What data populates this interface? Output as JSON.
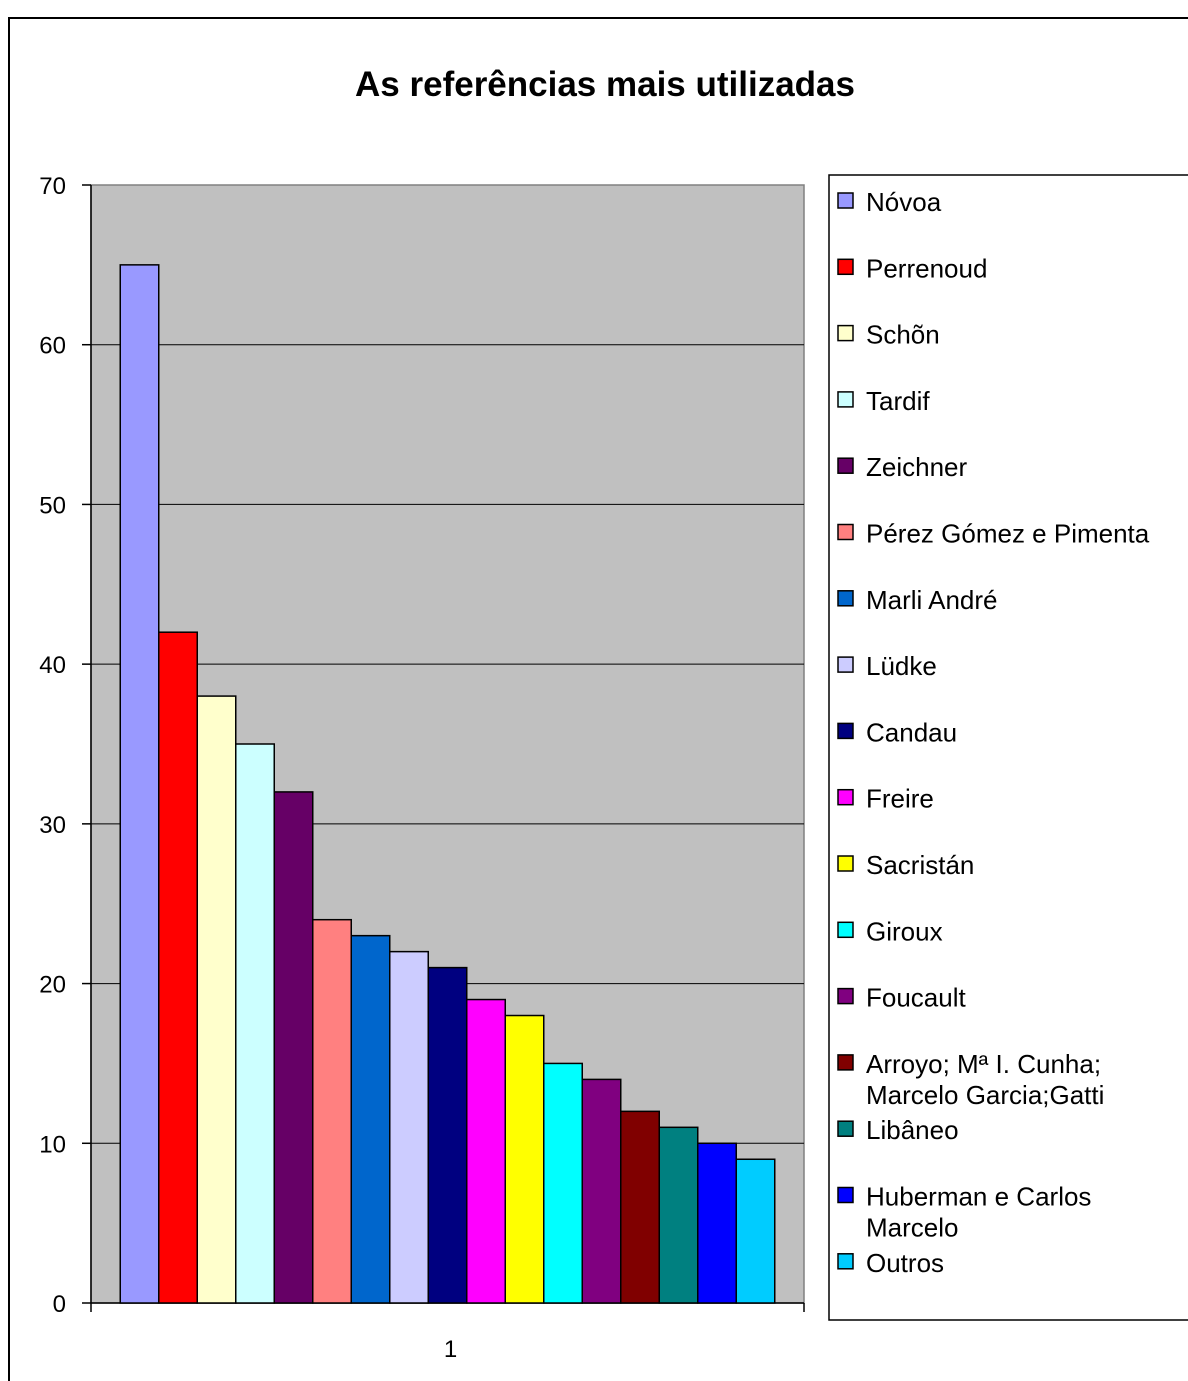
{
  "chart_data": {
    "type": "bar",
    "title": "As referências mais utilizadas",
    "categories": [
      "1"
    ],
    "ylim": [
      0,
      70
    ],
    "yticks": [
      "0",
      "10",
      "20",
      "30",
      "40",
      "50",
      "60",
      "70"
    ],
    "grid": true,
    "legend_position": "right",
    "series": [
      {
        "name": "Nóvoa",
        "values": [
          65
        ],
        "color": "#9999ff"
      },
      {
        "name": "Perrenoud",
        "values": [
          42
        ],
        "color": "#ff0000"
      },
      {
        "name": "Schõn",
        "values": [
          38
        ],
        "color": "#ffffcc"
      },
      {
        "name": "Tardif",
        "values": [
          35
        ],
        "color": "#ccffff"
      },
      {
        "name": "Zeichner",
        "values": [
          32
        ],
        "color": "#660066"
      },
      {
        "name": "Pérez Gómez e Pimenta",
        "values": [
          24
        ],
        "color": "#ff8080"
      },
      {
        "name": "Marli André",
        "values": [
          23
        ],
        "color": "#0066cc"
      },
      {
        "name": "Lüdke",
        "values": [
          22
        ],
        "color": "#ccccff"
      },
      {
        "name": "Candau",
        "values": [
          21
        ],
        "color": "#000080"
      },
      {
        "name": "Freire",
        "values": [
          19
        ],
        "color": "#ff00ff"
      },
      {
        "name": "Sacristán",
        "values": [
          18
        ],
        "color": "#ffff00"
      },
      {
        "name": "Giroux",
        "values": [
          15
        ],
        "color": "#00ffff"
      },
      {
        "name": "Foucault",
        "values": [
          14
        ],
        "color": "#800080"
      },
      {
        "name": "Arroyo; Mª I. Cunha; Marcelo Garcia;Gatti",
        "legend_lines": [
          "Arroyo; Mª I. Cunha;",
          "Marcelo Garcia;Gatti"
        ],
        "values": [
          12
        ],
        "color": "#800000"
      },
      {
        "name": "Libâneo",
        "values": [
          11
        ],
        "color": "#008080"
      },
      {
        "name": "Huberman e Carlos Marcelo",
        "legend_lines": [
          "Huberman e Carlos",
          "Marcelo"
        ],
        "values": [
          10
        ],
        "color": "#0000ff"
      },
      {
        "name": "Outros",
        "values": [
          9
        ],
        "color": "#00ccff"
      }
    ]
  }
}
